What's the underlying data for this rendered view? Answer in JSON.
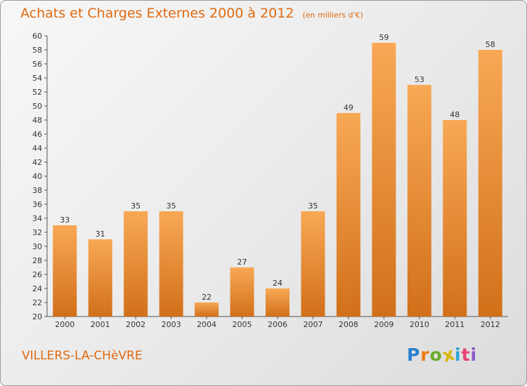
{
  "header": {
    "title": "Achats et Charges Externes 2000 à 2012",
    "unit": "(en milliers d'€)"
  },
  "footer": {
    "commune": "VILLERS-LA-CHèVRE",
    "logo_letters": [
      {
        "char": "P",
        "color": "#2a7fd0"
      },
      {
        "char": "r",
        "color": "#f07a10"
      },
      {
        "char": "o",
        "color": "#6aaa2a"
      },
      {
        "char": "x",
        "color": "#d8b400"
      },
      {
        "char": "i",
        "color": "#2aa6d8"
      },
      {
        "char": "t",
        "color": "#e84070"
      },
      {
        "char": "i",
        "color": "#8a5ac8"
      }
    ]
  },
  "chart_data": {
    "type": "bar",
    "title": "Achats et Charges Externes 2000 à 2012",
    "subtitle": "(en milliers d'€)",
    "xlabel": "",
    "ylabel": "",
    "categories": [
      "2000",
      "2001",
      "2002",
      "2003",
      "2004",
      "2005",
      "2006",
      "2007",
      "2008",
      "2009",
      "2010",
      "2011",
      "2012"
    ],
    "values": [
      33,
      31,
      35,
      35,
      22,
      27,
      24,
      35,
      49,
      59,
      53,
      48,
      58
    ],
    "ylim": [
      20,
      60
    ],
    "ytick_step": 2,
    "grid": false,
    "legend": "none",
    "bar_color_light": "#f8a855",
    "bar_color_dark": "#d2701a"
  }
}
